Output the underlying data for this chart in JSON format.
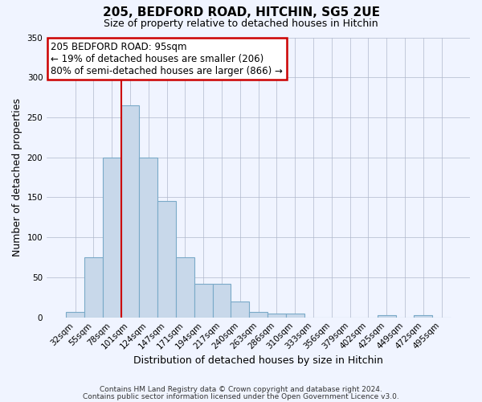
{
  "title": "205, BEDFORD ROAD, HITCHIN, SG5 2UE",
  "subtitle": "Size of property relative to detached houses in Hitchin",
  "xlabel": "Distribution of detached houses by size in Hitchin",
  "ylabel": "Number of detached properties",
  "bar_color": "#c8d8ea",
  "bar_edgecolor": "#7aaac8",
  "background_color": "#f0f4ff",
  "categories": [
    "32sqm",
    "55sqm",
    "78sqm",
    "101sqm",
    "124sqm",
    "147sqm",
    "171sqm",
    "194sqm",
    "217sqm",
    "240sqm",
    "263sqm",
    "286sqm",
    "310sqm",
    "333sqm",
    "356sqm",
    "379sqm",
    "402sqm",
    "425sqm",
    "449sqm",
    "472sqm",
    "495sqm"
  ],
  "values": [
    7,
    75,
    200,
    265,
    200,
    145,
    75,
    42,
    42,
    20,
    7,
    5,
    5,
    0,
    0,
    0,
    0,
    3,
    0,
    3,
    0
  ],
  "ylim": [
    0,
    350
  ],
  "yticks": [
    0,
    50,
    100,
    150,
    200,
    250,
    300,
    350
  ],
  "annotation_title": "205 BEDFORD ROAD: 95sqm",
  "annotation_line1": "← 19% of detached houses are smaller (206)",
  "annotation_line2": "80% of semi-detached houses are larger (866) →",
  "annotation_box_color": "#ffffff",
  "annotation_box_edgecolor": "#cc0000",
  "vline_color": "#cc0000",
  "vline_x_index": 3,
  "footer1": "Contains HM Land Registry data © Crown copyright and database right 2024.",
  "footer2": "Contains public sector information licensed under the Open Government Licence v3.0.",
  "title_fontsize": 11,
  "subtitle_fontsize": 9,
  "axis_label_fontsize": 9,
  "tick_fontsize": 7.5
}
